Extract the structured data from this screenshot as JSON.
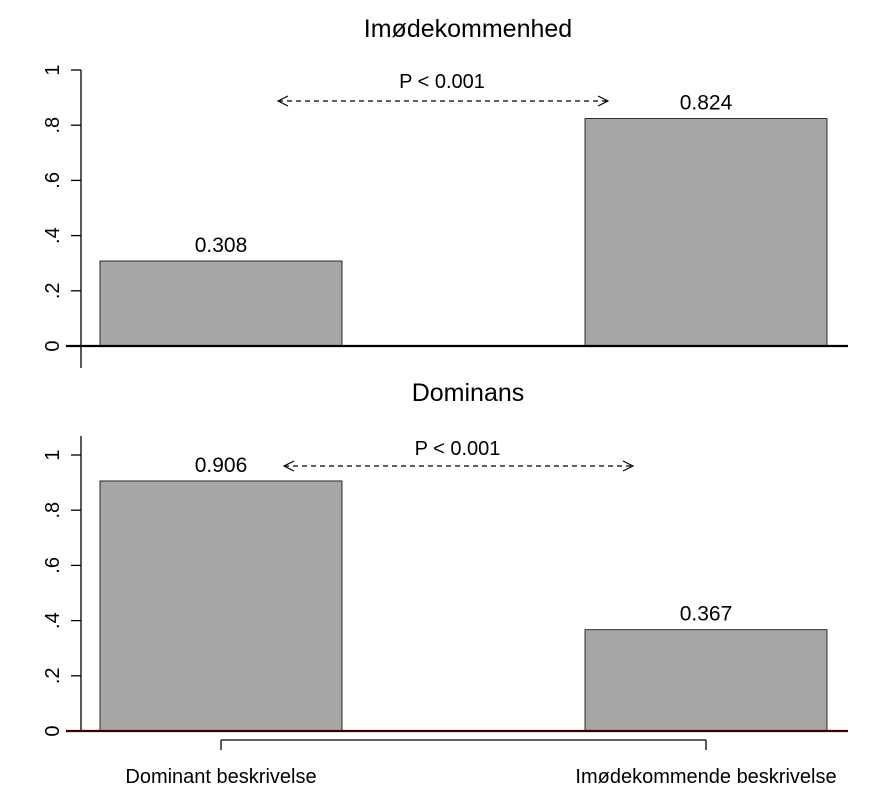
{
  "chart_data": [
    {
      "type": "bar",
      "title": "Imødekommenhed",
      "categories": [
        "Dominant beskrivelse",
        "Imødekommende beskrivelse"
      ],
      "values": [
        0.308,
        0.824
      ],
      "value_labels": [
        "0.308",
        "0.824"
      ],
      "yticks": [
        0,
        0.2,
        0.4,
        0.6,
        0.8,
        1
      ],
      "ytick_labels": [
        "0",
        ".2",
        ".4",
        ".6",
        ".8",
        "1"
      ],
      "ylim": [
        0,
        1
      ],
      "annotation": "P < 0.001",
      "xlabel": "",
      "ylabel": "",
      "bar_color": "#a6a6a6"
    },
    {
      "type": "bar",
      "title": "Dominans",
      "categories": [
        "Dominant beskrivelse",
        "Imødekommende beskrivelse"
      ],
      "category_labels": [
        "Dominant beskrivelse",
        "Imødekommende beskrivelse"
      ],
      "values": [
        0.906,
        0.367
      ],
      "value_labels": [
        "0.906",
        "0.367"
      ],
      "yticks": [
        0,
        0.2,
        0.4,
        0.6,
        0.8,
        1
      ],
      "ytick_labels": [
        "0",
        ".2",
        ".4",
        ".6",
        ".8",
        "1"
      ],
      "ylim": [
        0,
        1
      ],
      "annotation": "P < 0.001",
      "xlabel": "",
      "ylabel": "",
      "bar_color": "#a6a6a6"
    }
  ]
}
